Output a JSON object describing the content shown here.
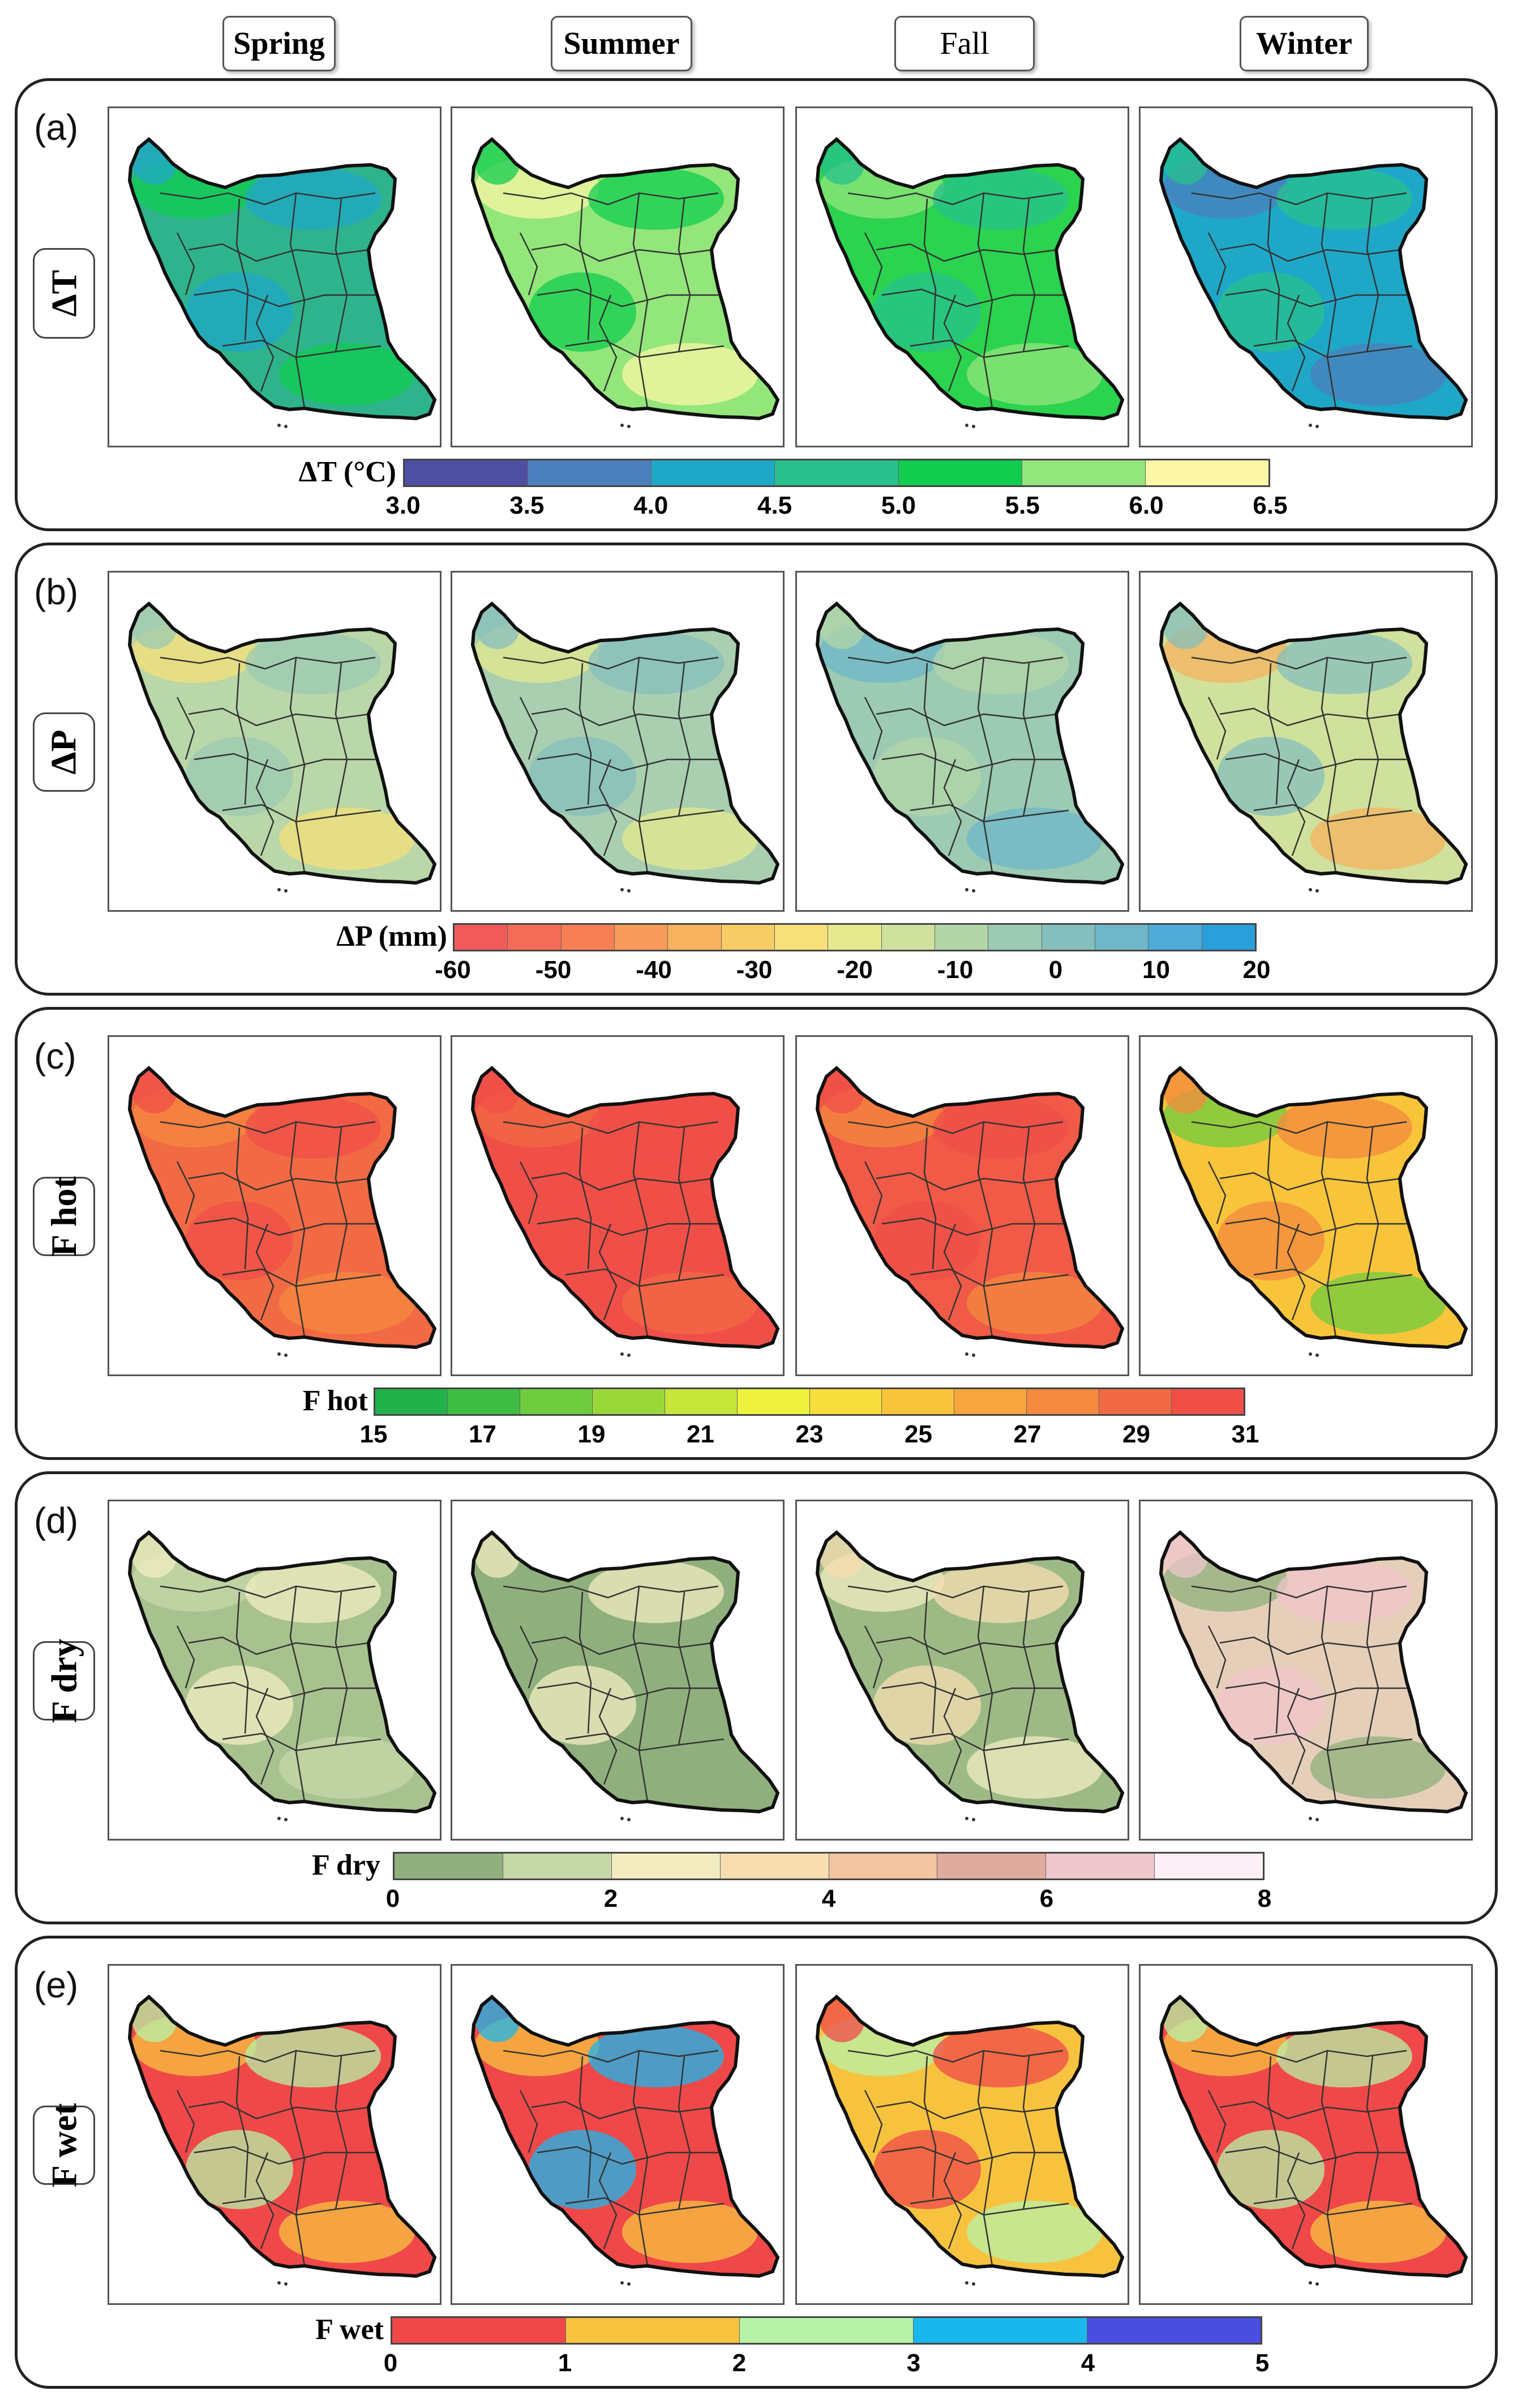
{
  "seasons": [
    "Spring",
    "Summer",
    "Fall",
    "Winter"
  ],
  "rows": [
    {
      "letter": "(a)",
      "variable": "ΔT",
      "legend_title": "ΔT (°C)",
      "colors": [
        "#4e4fa3",
        "#4c7fbe",
        "#1fa7c8",
        "#28c08c",
        "#10cc4f",
        "#93e67a",
        "#fbf7a6"
      ],
      "ticks": [
        "3.0",
        "3.5",
        "4.0",
        "4.5",
        "5.0",
        "5.5",
        "6.0",
        "6.5"
      ],
      "maps": [
        {
          "season": "Spring",
          "base": "#2fb38c",
          "accents": [
            "#10cc4f",
            "#1fa7c8"
          ]
        },
        {
          "season": "Summer",
          "base": "#93e67a",
          "accents": [
            "#fbf7a6",
            "#10cc4f"
          ]
        },
        {
          "season": "Fall",
          "base": "#2bd34f",
          "accents": [
            "#93e67a",
            "#28c08c"
          ]
        },
        {
          "season": "Winter",
          "base": "#1fa7c8",
          "accents": [
            "#4c7fbe",
            "#28c08c"
          ]
        }
      ]
    },
    {
      "letter": "(b)",
      "variable": "ΔP",
      "legend_title": "ΔP (mm)",
      "colors": [
        "#f25a5a",
        "#f46c57",
        "#f67f55",
        "#f79a5a",
        "#f7b25e",
        "#f7cb66",
        "#f5e07a",
        "#e6e98e",
        "#cfe19c",
        "#b3d6a8",
        "#9ccab3",
        "#85bfbd",
        "#6fb7c8",
        "#4eaad6",
        "#29a0da"
      ],
      "ticks": [
        "-60",
        "-50",
        "-40",
        "-30",
        "-20",
        "-10",
        "0",
        "10",
        "20"
      ],
      "maps": [
        {
          "season": "Spring",
          "base": "#b9d7a8",
          "accents": [
            "#f5e07a",
            "#9ccab3"
          ]
        },
        {
          "season": "Summer",
          "base": "#a9cfb0",
          "accents": [
            "#e6e98e",
            "#85bfbd"
          ]
        },
        {
          "season": "Fall",
          "base": "#9ccab3",
          "accents": [
            "#6fb7c8",
            "#b3d6a8"
          ]
        },
        {
          "season": "Winter",
          "base": "#cfe19c",
          "accents": [
            "#f7b25e",
            "#85bfbd"
          ]
        }
      ]
    },
    {
      "letter": "(c)",
      "variable": "F hot",
      "legend_title": "F hot",
      "colors": [
        "#22b24c",
        "#3fbd45",
        "#6fcc3f",
        "#9ad83a",
        "#c6e63a",
        "#eef23f",
        "#f7de3b",
        "#f8c43a",
        "#f6a63c",
        "#f4893f",
        "#f26a43",
        "#f04f48"
      ],
      "ticks": [
        "15",
        "17",
        "19",
        "21",
        "23",
        "25",
        "27",
        "29",
        "31"
      ],
      "maps": [
        {
          "season": "Spring",
          "base": "#f26a43",
          "accents": [
            "#f4893f",
            "#f04f48"
          ]
        },
        {
          "season": "Summer",
          "base": "#f04f48",
          "accents": [
            "#f26a43",
            "#f04f48"
          ]
        },
        {
          "season": "Fall",
          "base": "#f05a46",
          "accents": [
            "#f4893f",
            "#f04f48"
          ]
        },
        {
          "season": "Winter",
          "base": "#f8c43a",
          "accents": [
            "#6fcc3f",
            "#f4893f"
          ]
        }
      ]
    },
    {
      "letter": "(d)",
      "variable": "F dry",
      "legend_title": "F dry",
      "colors": [
        "#8fb07c",
        "#c6d7a8",
        "#f2ecc0",
        "#f7ddb0",
        "#f2c4a0",
        "#e0ab9c",
        "#efc6cc",
        "#fdf1f7"
      ],
      "ticks": [
        "0",
        "2",
        "4",
        "6",
        "8"
      ],
      "maps": [
        {
          "season": "Spring",
          "base": "#a8c28f",
          "accents": [
            "#c6d7a8",
            "#f2ecc0"
          ]
        },
        {
          "season": "Summer",
          "base": "#8fb07c",
          "accents": [
            "#8fb07c",
            "#f2ecc0"
          ]
        },
        {
          "season": "Fall",
          "base": "#9dba86",
          "accents": [
            "#f2ecc0",
            "#f7ddb0"
          ]
        },
        {
          "season": "Winter",
          "base": "#e6cfb9",
          "accents": [
            "#8fb07c",
            "#efc6cc"
          ]
        }
      ]
    },
    {
      "letter": "(e)",
      "variable": "F wet",
      "legend_title": "F wet",
      "colors": [
        "#f04848",
        "#f7c33f",
        "#b7f2a8",
        "#19b7ee",
        "#4a4ee0"
      ],
      "ticks": [
        "0",
        "1",
        "2",
        "3",
        "4",
        "5"
      ],
      "maps": [
        {
          "season": "Spring",
          "base": "#f04848",
          "accents": [
            "#f7c33f",
            "#b7f2a8"
          ]
        },
        {
          "season": "Summer",
          "base": "#f04848",
          "accents": [
            "#f7c33f",
            "#19b7ee"
          ]
        },
        {
          "season": "Fall",
          "base": "#f7c33f",
          "accents": [
            "#b7f2a8",
            "#f04848"
          ]
        },
        {
          "season": "Winter",
          "base": "#f04848",
          "accents": [
            "#f7c33f",
            "#b7f2a8"
          ]
        }
      ]
    }
  ]
}
